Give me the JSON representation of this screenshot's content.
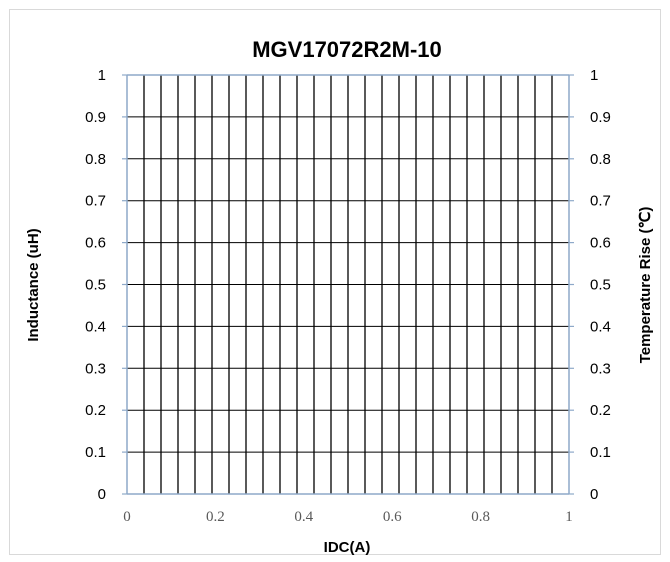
{
  "chart_data": {
    "type": "line",
    "title": "MGV17072R2M-10",
    "xlabel": "IDC(A)",
    "ylabel": "Inductance (uH)",
    "y2label": "Temperature Rise (℃)",
    "xlim": [
      0,
      1
    ],
    "ylim": [
      0,
      1
    ],
    "y2lim": [
      0,
      1
    ],
    "x_ticks": [
      "0",
      "0.2",
      "0.4",
      "0.6",
      "0.8",
      "1"
    ],
    "y_ticks": [
      "0",
      "0.1",
      "0.2",
      "0.3",
      "0.4",
      "0.5",
      "0.6",
      "0.7",
      "0.8",
      "0.9",
      "1"
    ],
    "y2_ticks": [
      "0",
      "0.1",
      "0.2",
      "0.3",
      "0.4",
      "0.5",
      "0.6",
      "0.7",
      "0.8",
      "0.9",
      "1"
    ],
    "vertical_gridlines": 26,
    "horizontal_gridlines": 10,
    "grid": true,
    "series": []
  },
  "colors": {
    "grid": "#000000",
    "axis": "#8ea9c9",
    "frame": "#d9d9d9"
  }
}
